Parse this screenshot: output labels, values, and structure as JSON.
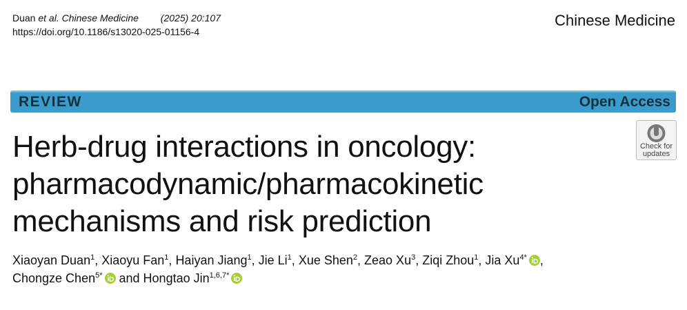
{
  "header": {
    "author_short": "Duan",
    "et_al": "et al.",
    "journal_cite": "Chinese Medicine",
    "year_volume": "(2025) 20:107",
    "doi": "https://doi.org/10.1186/s13020-025-01156-4",
    "journal": "Chinese Medicine"
  },
  "banner": {
    "type": "REVIEW",
    "access": "Open Access"
  },
  "badge": {
    "line1": "Check for",
    "line2": "updates"
  },
  "title_lines": [
    "Herb-drug interactions in oncology:",
    "pharmacodynamic/pharmacokinetic",
    "mechanisms and risk prediction"
  ],
  "author_lines": [
    [
      {
        "name": "Xiaoyan Duan",
        "aff": "1",
        "after": ", "
      },
      {
        "name": "Xiaoyu Fan",
        "aff": "1",
        "after": ", "
      },
      {
        "name": "Haiyan Jiang",
        "aff": "1",
        "after": ", "
      },
      {
        "name": "Jie Li",
        "aff": "1",
        "after": ", "
      },
      {
        "name": "Xue Shen",
        "aff": "2",
        "after": ", "
      },
      {
        "name": "Zeao Xu",
        "aff": "3",
        "after": ", "
      },
      {
        "name": "Ziqi Zhou",
        "aff": "1",
        "after": ", "
      },
      {
        "name": "Jia Xu",
        "aff": "4*",
        "orcid": true,
        "after": ","
      }
    ],
    [
      {
        "name": "Chongze Chen",
        "aff": "5*",
        "orcid": true,
        "after": " and "
      },
      {
        "name": "Hongtao Jin",
        "aff": "1,6,7*",
        "orcid": true
      }
    ]
  ]
}
